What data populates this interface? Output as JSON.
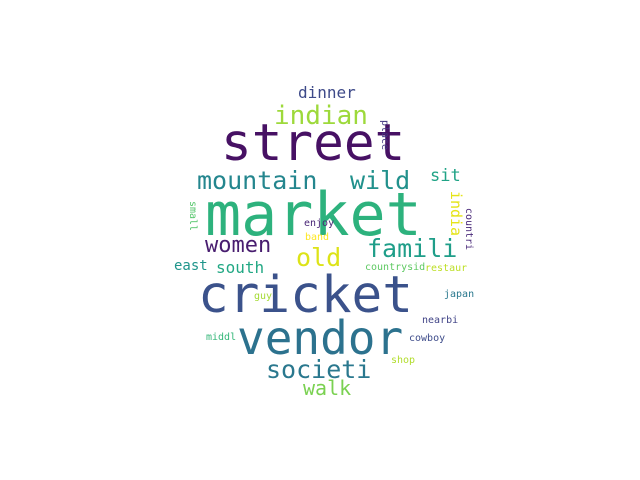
{
  "wordcloud": {
    "words": [
      {
        "text": "market",
        "color": "#2db27d"
      },
      {
        "text": "street",
        "color": "#471164"
      },
      {
        "text": "cricket",
        "color": "#3b528b"
      },
      {
        "text": "vendor",
        "color": "#2c728e"
      },
      {
        "text": "indian",
        "color": "#9dd93b"
      },
      {
        "text": "mountain",
        "color": "#24868e"
      },
      {
        "text": "wild",
        "color": "#21918c"
      },
      {
        "text": "famili",
        "color": "#1f9e89"
      },
      {
        "text": "women",
        "color": "#481d6f"
      },
      {
        "text": "old",
        "color": "#dde318"
      },
      {
        "text": "societi",
        "color": "#2a788e"
      },
      {
        "text": "walk",
        "color": "#7ad151"
      },
      {
        "text": "south",
        "color": "#22a884"
      },
      {
        "text": "east",
        "color": "#1f958b"
      },
      {
        "text": "sit",
        "color": "#20a386"
      },
      {
        "text": "dinner",
        "color": "#3e4a89"
      },
      {
        "text": "india",
        "color": "#e5e419"
      },
      {
        "text": "place",
        "color": "#443983"
      },
      {
        "text": "small",
        "color": "#52c569"
      },
      {
        "text": "enjoy",
        "color": "#482576"
      },
      {
        "text": "band",
        "color": "#fde725"
      },
      {
        "text": "countri",
        "color": "#482878"
      },
      {
        "text": "restaur",
        "color": "#bddf26"
      },
      {
        "text": "countrysid",
        "color": "#5ec962"
      },
      {
        "text": "guy",
        "color": "#a5db36"
      },
      {
        "text": "japan",
        "color": "#2a788e"
      },
      {
        "text": "nearbi",
        "color": "#414487"
      },
      {
        "text": "middl",
        "color": "#35b779"
      },
      {
        "text": "cowboy",
        "color": "#3e4c8a"
      },
      {
        "text": "shop",
        "color": "#b2dd2d"
      }
    ]
  }
}
